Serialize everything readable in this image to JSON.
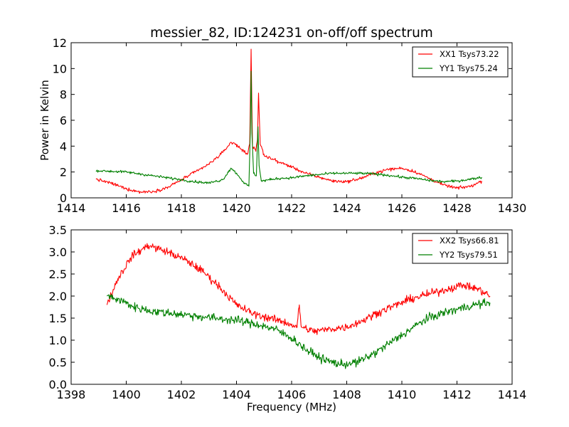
{
  "chart_data": [
    {
      "type": "line",
      "title": "messier_82, ID:124231 on-off/off spectrum",
      "xlabel": "",
      "ylabel": "Power in Kelvin",
      "xlim": [
        1414,
        1430
      ],
      "ylim": [
        0,
        12
      ],
      "xticks": [
        1414,
        1416,
        1418,
        1420,
        1422,
        1424,
        1426,
        1428,
        1430
      ],
      "yticks": [
        0,
        2,
        4,
        6,
        8,
        10,
        12
      ],
      "grid": false,
      "legend_position": "top-right",
      "series": [
        {
          "name": "XX1 Tsys73.22",
          "color": "#ff0000",
          "noise": 0.12,
          "points": [
            [
              1414.9,
              1.45
            ],
            [
              1415.5,
              1.1
            ],
            [
              1416.0,
              0.7
            ],
            [
              1416.5,
              0.45
            ],
            [
              1417.0,
              0.5
            ],
            [
              1417.5,
              0.8
            ],
            [
              1418.0,
              1.4
            ],
            [
              1418.5,
              2.0
            ],
            [
              1419.0,
              2.6
            ],
            [
              1419.5,
              3.5
            ],
            [
              1419.8,
              4.3
            ],
            [
              1420.0,
              4.1
            ],
            [
              1420.2,
              3.7
            ],
            [
              1420.4,
              3.4
            ],
            [
              1420.48,
              4.2
            ],
            [
              1420.53,
              11.5
            ],
            [
              1420.58,
              4.0
            ],
            [
              1420.7,
              3.6
            ],
            [
              1420.76,
              4.5
            ],
            [
              1420.8,
              8.1
            ],
            [
              1420.86,
              4.2
            ],
            [
              1421.0,
              3.3
            ],
            [
              1421.5,
              2.8
            ],
            [
              1422.0,
              2.4
            ],
            [
              1422.5,
              1.9
            ],
            [
              1423.0,
              1.6
            ],
            [
              1423.5,
              1.3
            ],
            [
              1424.0,
              1.25
            ],
            [
              1424.5,
              1.5
            ],
            [
              1425.0,
              1.9
            ],
            [
              1425.5,
              2.2
            ],
            [
              1426.0,
              2.3
            ],
            [
              1426.5,
              2.0
            ],
            [
              1427.0,
              1.5
            ],
            [
              1427.5,
              1.0
            ],
            [
              1428.0,
              0.75
            ],
            [
              1428.5,
              0.9
            ],
            [
              1428.9,
              1.3
            ]
          ]
        },
        {
          "name": "YY1 Tsys75.24",
          "color": "#008000",
          "noise": 0.1,
          "points": [
            [
              1414.9,
              2.1
            ],
            [
              1415.5,
              2.05
            ],
            [
              1416.0,
              2.0
            ],
            [
              1416.5,
              1.85
            ],
            [
              1417.0,
              1.7
            ],
            [
              1417.5,
              1.55
            ],
            [
              1418.0,
              1.4
            ],
            [
              1418.5,
              1.25
            ],
            [
              1419.0,
              1.15
            ],
            [
              1419.5,
              1.4
            ],
            [
              1419.8,
              2.3
            ],
            [
              1420.0,
              1.9
            ],
            [
              1420.3,
              1.1
            ],
            [
              1420.45,
              0.9
            ],
            [
              1420.5,
              5.0
            ],
            [
              1420.53,
              9.8
            ],
            [
              1420.56,
              5.0
            ],
            [
              1420.62,
              1.9
            ],
            [
              1420.72,
              1.7
            ],
            [
              1420.78,
              5.5
            ],
            [
              1420.82,
              2.5
            ],
            [
              1420.9,
              1.3
            ],
            [
              1421.5,
              1.5
            ],
            [
              1422.0,
              1.55
            ],
            [
              1422.5,
              1.7
            ],
            [
              1423.0,
              1.8
            ],
            [
              1423.5,
              1.9
            ],
            [
              1424.0,
              1.9
            ],
            [
              1424.5,
              1.9
            ],
            [
              1425.0,
              1.85
            ],
            [
              1425.5,
              1.75
            ],
            [
              1426.0,
              1.6
            ],
            [
              1426.5,
              1.5
            ],
            [
              1427.0,
              1.35
            ],
            [
              1427.5,
              1.25
            ],
            [
              1428.0,
              1.3
            ],
            [
              1428.5,
              1.45
            ],
            [
              1428.9,
              1.6
            ]
          ]
        }
      ]
    },
    {
      "type": "line",
      "title": "",
      "xlabel": "Frequency (MHz)",
      "ylabel": "",
      "xlim": [
        1398,
        1414
      ],
      "ylim": [
        0,
        3.5
      ],
      "xticks": [
        1398,
        1400,
        1402,
        1404,
        1406,
        1408,
        1410,
        1412,
        1414
      ],
      "yticks": [
        0.0,
        0.5,
        1.0,
        1.5,
        2.0,
        2.5,
        3.0,
        3.5
      ],
      "ytick_format": "0.0",
      "grid": false,
      "legend_position": "top-right",
      "series": [
        {
          "name": "XX2 Tsys66.81",
          "color": "#ff0000",
          "noise": 0.09,
          "points": [
            [
              1399.3,
              1.8
            ],
            [
              1399.7,
              2.4
            ],
            [
              1400.2,
              2.9
            ],
            [
              1400.8,
              3.15
            ],
            [
              1401.5,
              3.0
            ],
            [
              1402.2,
              2.8
            ],
            [
              1402.8,
              2.55
            ],
            [
              1403.4,
              2.2
            ],
            [
              1404.0,
              1.8
            ],
            [
              1404.6,
              1.6
            ],
            [
              1405.2,
              1.5
            ],
            [
              1405.8,
              1.4
            ],
            [
              1406.2,
              1.3
            ],
            [
              1406.28,
              1.8
            ],
            [
              1406.35,
              1.3
            ],
            [
              1406.8,
              1.2
            ],
            [
              1407.4,
              1.25
            ],
            [
              1408.0,
              1.3
            ],
            [
              1408.6,
              1.45
            ],
            [
              1409.2,
              1.65
            ],
            [
              1409.8,
              1.8
            ],
            [
              1410.4,
              1.95
            ],
            [
              1411.0,
              2.05
            ],
            [
              1411.6,
              2.15
            ],
            [
              1412.2,
              2.25
            ],
            [
              1412.8,
              2.15
            ],
            [
              1413.2,
              2.0
            ]
          ]
        },
        {
          "name": "YY2 Tsys79.51",
          "color": "#008000",
          "noise": 0.1,
          "points": [
            [
              1399.3,
              2.0
            ],
            [
              1399.8,
              1.9
            ],
            [
              1400.3,
              1.75
            ],
            [
              1401.0,
              1.65
            ],
            [
              1401.8,
              1.6
            ],
            [
              1402.5,
              1.55
            ],
            [
              1403.2,
              1.5
            ],
            [
              1404.0,
              1.45
            ],
            [
              1404.8,
              1.35
            ],
            [
              1405.4,
              1.25
            ],
            [
              1406.0,
              1.05
            ],
            [
              1406.6,
              0.75
            ],
            [
              1407.2,
              0.55
            ],
            [
              1407.8,
              0.45
            ],
            [
              1408.4,
              0.5
            ],
            [
              1409.0,
              0.7
            ],
            [
              1409.6,
              0.95
            ],
            [
              1410.2,
              1.2
            ],
            [
              1410.8,
              1.45
            ],
            [
              1411.4,
              1.6
            ],
            [
              1412.0,
              1.7
            ],
            [
              1412.6,
              1.8
            ],
            [
              1413.2,
              1.85
            ]
          ]
        }
      ]
    }
  ]
}
